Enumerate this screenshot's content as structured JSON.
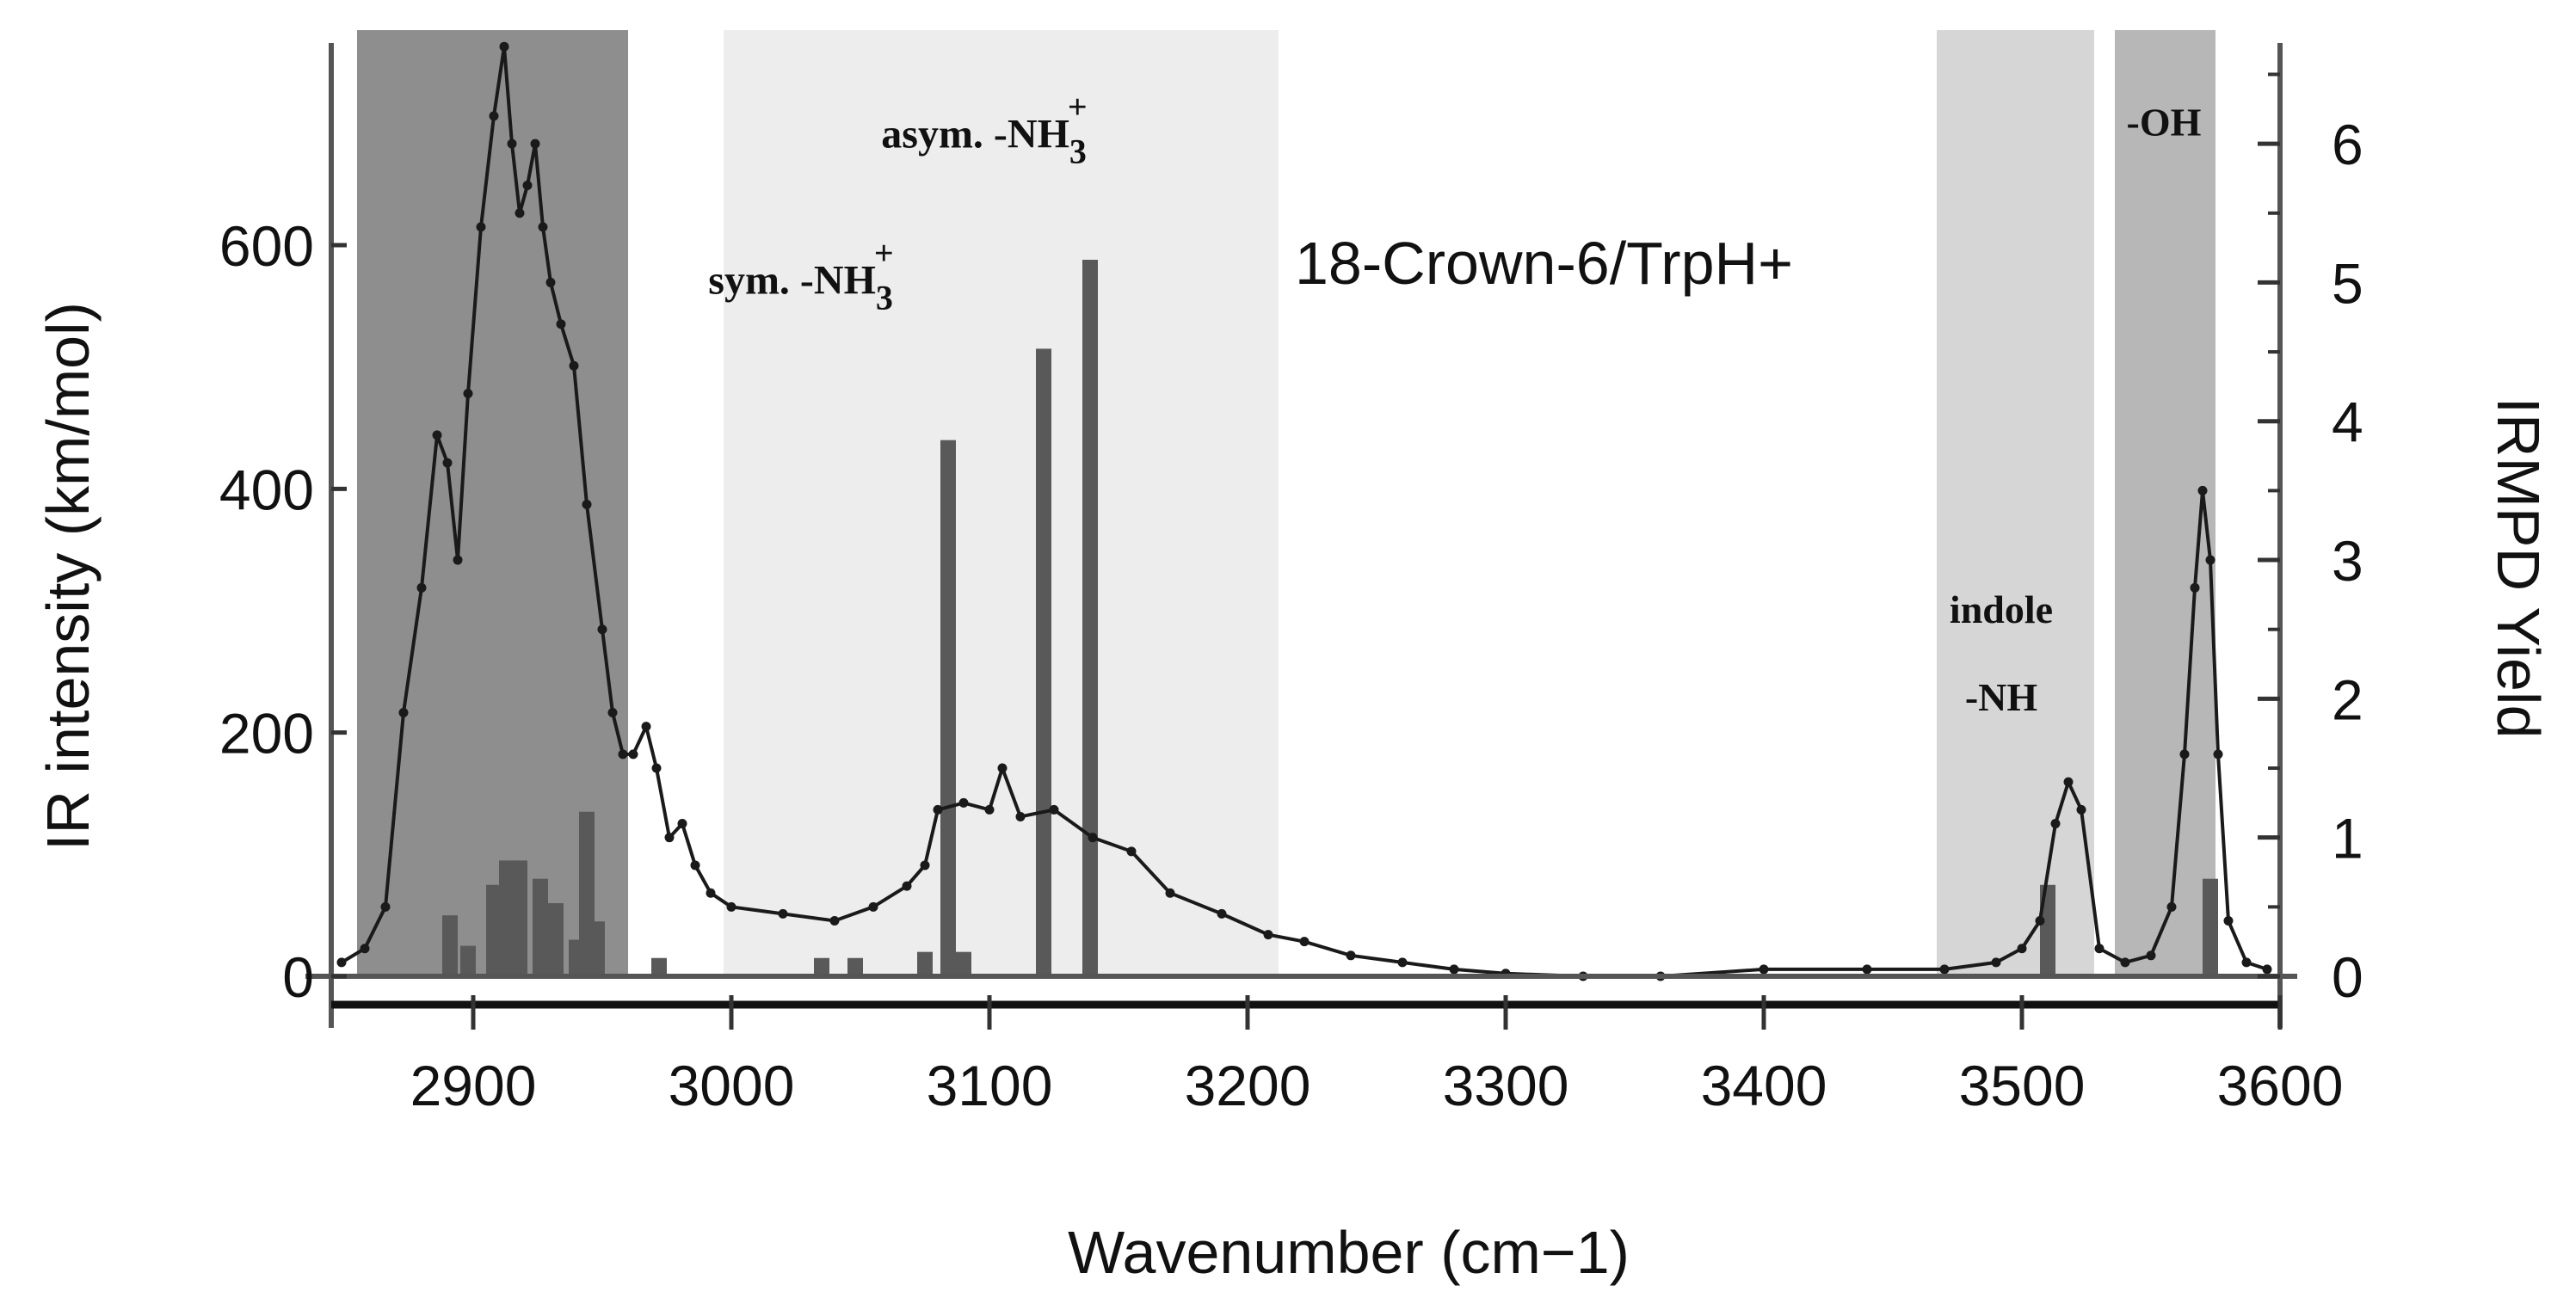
{
  "chart_data": {
    "type": "line",
    "title": "18-Crown-6/TrpH+",
    "xlabel": "Wavenumber (cm−1)",
    "ylabel_left": "IR intensity (km/mol)",
    "ylabel_right": "IRMPD Yield",
    "xlim": [
      2845,
      3600
    ],
    "ylim_left": [
      0,
      780
    ],
    "ylim_right": [
      0,
      6.85
    ],
    "x_ticks": [
      2900,
      3000,
      3100,
      3200,
      3300,
      3400,
      3500,
      3600
    ],
    "y_ticks_left": [
      0,
      200,
      400,
      600
    ],
    "y_ticks_right": [
      0,
      1,
      2,
      3,
      4,
      5,
      6
    ],
    "shaded_regions": [
      {
        "x": [
          2855,
          2960
        ],
        "shade": "#8e8e8e"
      },
      {
        "x": [
          2997,
          3212
        ],
        "shade": "#ededed"
      },
      {
        "x": [
          3467,
          3528
        ],
        "shade": "#d6d6d6"
      },
      {
        "x": [
          3536,
          3575
        ],
        "shade": "#b7b7b7"
      }
    ],
    "annotations": [
      {
        "text": "sym. -NH",
        "sub": "3",
        "sup": "+",
        "x": 3027,
        "y": 560
      },
      {
        "text": "asym. -NH",
        "sub": "3",
        "sup": "+",
        "x": 3098,
        "y": 680
      },
      {
        "text": "indole",
        "x": 3492,
        "y": 290
      },
      {
        "text": "-NH",
        "x": 3492,
        "y": 218
      },
      {
        "text": "-OH",
        "x": 3555,
        "y": 690
      }
    ],
    "series": [
      {
        "axis": "right",
        "style": "line-with-markers",
        "x": [
          2849,
          2858,
          2866,
          2873,
          2880,
          2886,
          2890,
          2894,
          2898,
          2903,
          2908,
          2912,
          2915,
          2918,
          2921,
          2924,
          2927,
          2930,
          2934,
          2939,
          2944,
          2950,
          2954,
          2958,
          2962,
          2967,
          2971,
          2976,
          2981,
          2986,
          2992,
          3000,
          3020,
          3040,
          3055,
          3068,
          3075,
          3080,
          3090,
          3100,
          3105,
          3112,
          3125,
          3140,
          3155,
          3170,
          3190,
          3208,
          3222,
          3240,
          3260,
          3280,
          3300,
          3330,
          3360,
          3400,
          3440,
          3470,
          3490,
          3500,
          3507,
          3513,
          3518,
          3523,
          3530,
          3540,
          3550,
          3558,
          3563,
          3567,
          3570,
          3573,
          3576,
          3580,
          3587,
          3595
        ],
        "y": [
          0.1,
          0.2,
          0.5,
          1.9,
          2.8,
          3.9,
          3.7,
          3.0,
          4.2,
          5.4,
          6.2,
          6.7,
          6.0,
          5.5,
          5.7,
          6.0,
          5.4,
          5.0,
          4.7,
          4.4,
          3.4,
          2.5,
          1.9,
          1.6,
          1.6,
          1.8,
          1.5,
          1.0,
          1.1,
          0.8,
          0.6,
          0.5,
          0.45,
          0.4,
          0.5,
          0.65,
          0.8,
          1.2,
          1.25,
          1.2,
          1.5,
          1.15,
          1.2,
          1.0,
          0.9,
          0.6,
          0.45,
          0.3,
          0.25,
          0.15,
          0.1,
          0.05,
          0.02,
          0.0,
          0.0,
          0.05,
          0.05,
          0.05,
          0.1,
          0.2,
          0.4,
          1.1,
          1.4,
          1.2,
          0.2,
          0.1,
          0.15,
          0.5,
          1.6,
          2.8,
          3.5,
          3.0,
          1.6,
          0.4,
          0.1,
          0.05
        ]
      },
      {
        "axis": "left",
        "style": "sticks",
        "x": [
          2891,
          2898,
          2908,
          2913,
          2918,
          2926,
          2932,
          2940,
          2944,
          2948,
          2972,
          3035,
          3048,
          3075,
          3084,
          3090,
          3121,
          3139,
          3510,
          3573
        ],
        "y": [
          50,
          25,
          75,
          95,
          95,
          80,
          60,
          30,
          135,
          45,
          15,
          15,
          15,
          20,
          440,
          20,
          515,
          588,
          75,
          80
        ]
      }
    ]
  }
}
